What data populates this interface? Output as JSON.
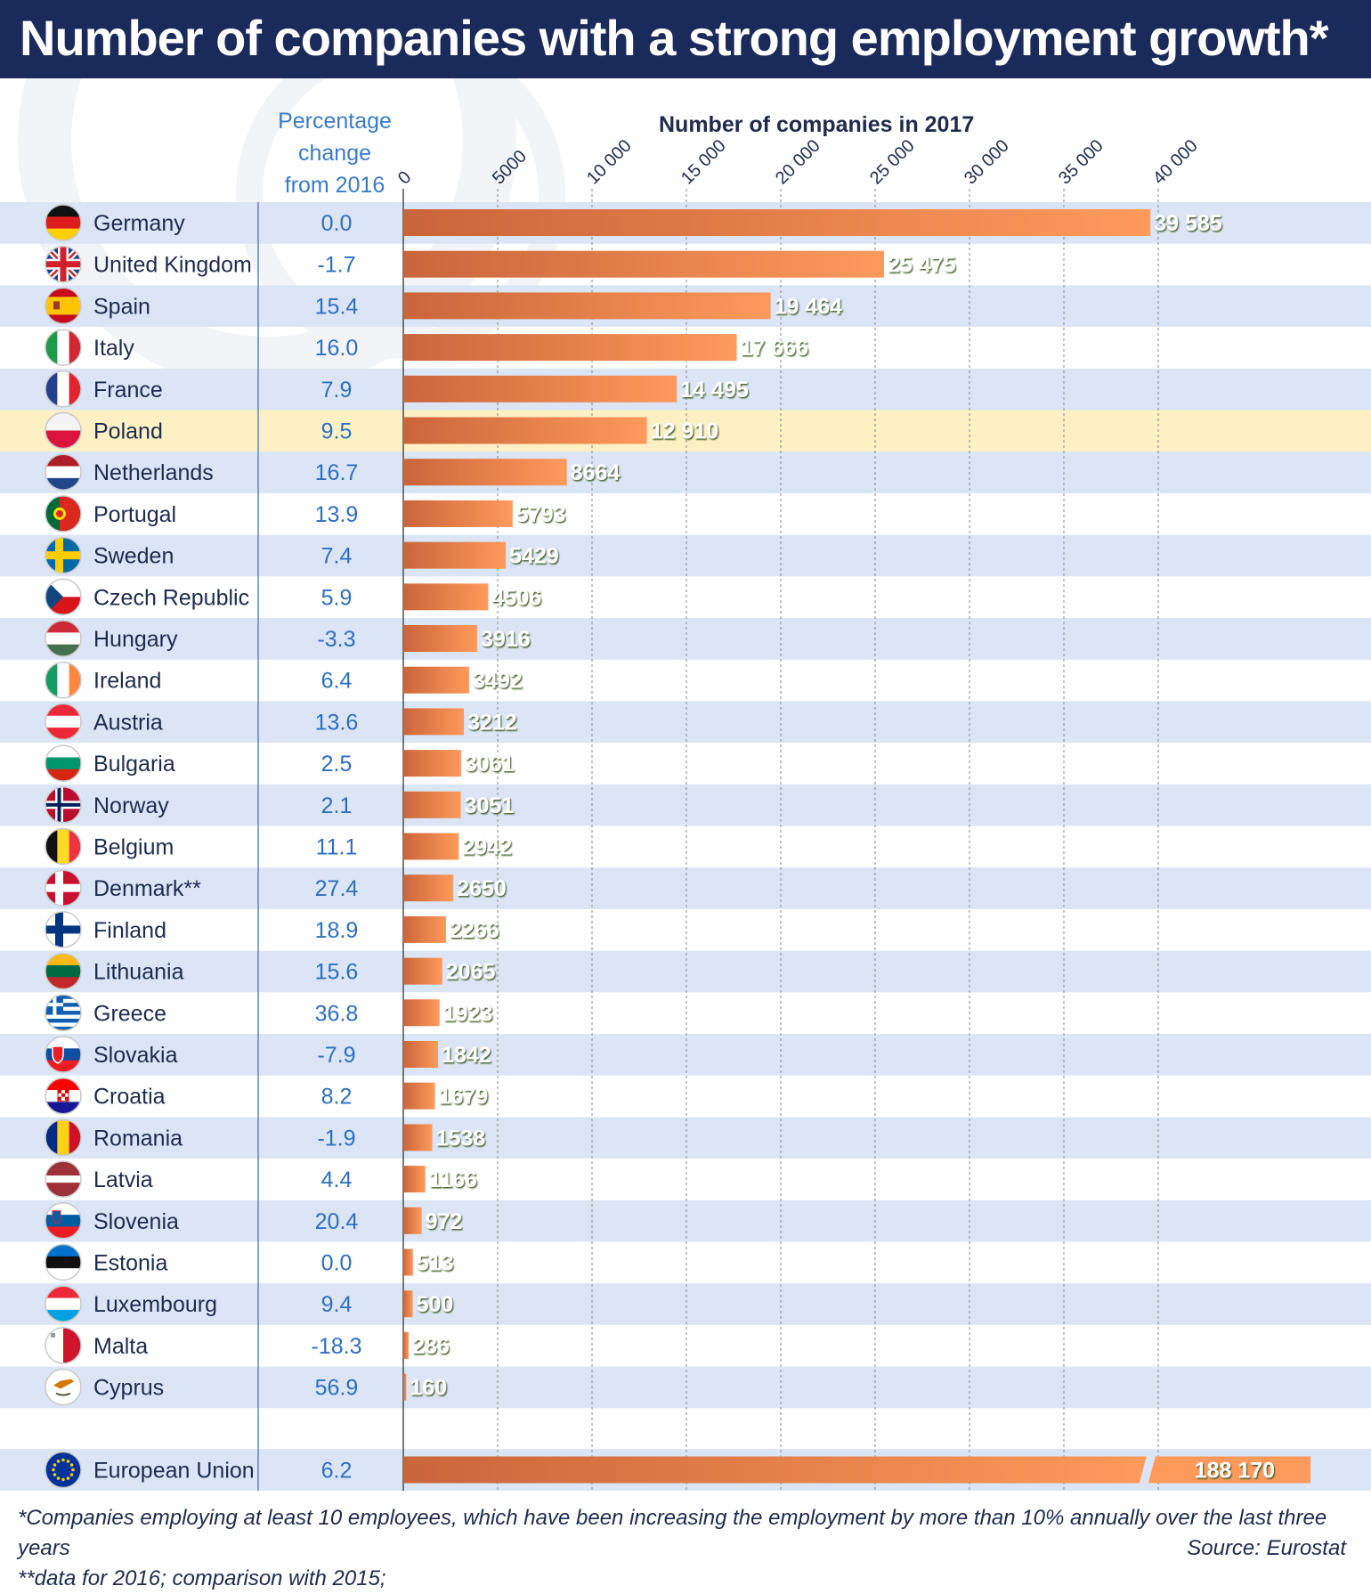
{
  "title": "Number of companies with a strong employment growth*",
  "pct_header": [
    "Percentage",
    "change",
    "from 2016"
  ],
  "footnotes": {
    "note1": "*Companies employing at least 10 employees, which have been increasing the employment by more than 10% annually over the last three years",
    "note2": "**data for 2016; comparison with 2015;",
    "source": "Source: Eurostat"
  },
  "colors": {
    "title_bg": "#1a2a5a",
    "stripe": "#dbe5f6",
    "highlight": "#fcf0c4",
    "bar_light": "#ff9a5c",
    "bar_dark": "#c9653a",
    "pct_text": "#2f6fc0",
    "value_text": "#ffffff",
    "value_shadow": "#3c5a1e"
  },
  "chart_data": {
    "type": "bar",
    "orientation": "horizontal",
    "xlabel": "Number of companies in 2017",
    "xticks": [
      "0",
      "5000",
      "10 000",
      "15 000",
      "20 000",
      "25 000",
      "30 000",
      "35 000",
      "40 000"
    ],
    "xlim": [
      0,
      45000
    ],
    "grid": true,
    "highlighted": "Poland",
    "rows": [
      {
        "country": "Germany",
        "flag": "germany-flag",
        "pct": "0.0",
        "value": 39585,
        "label": "39 585"
      },
      {
        "country": "United Kingdom",
        "flag": "uk-flag",
        "pct": "-1.7",
        "value": 25475,
        "label": "25 475"
      },
      {
        "country": "Spain",
        "flag": "spain-flag",
        "pct": "15.4",
        "value": 19464,
        "label": "19 464"
      },
      {
        "country": "Italy",
        "flag": "italy-flag",
        "pct": "16.0",
        "value": 17666,
        "label": "17 666"
      },
      {
        "country": "France",
        "flag": "france-flag",
        "pct": "7.9",
        "value": 14495,
        "label": "14 495"
      },
      {
        "country": "Poland",
        "flag": "poland-flag",
        "pct": "9.5",
        "value": 12910,
        "label": "12 910"
      },
      {
        "country": "Netherlands",
        "flag": "netherlands-flag",
        "pct": "16.7",
        "value": 8664,
        "label": "8664"
      },
      {
        "country": "Portugal",
        "flag": "portugal-flag",
        "pct": "13.9",
        "value": 5793,
        "label": "5793"
      },
      {
        "country": "Sweden",
        "flag": "sweden-flag",
        "pct": "7.4",
        "value": 5429,
        "label": "5429"
      },
      {
        "country": "Czech Republic",
        "flag": "czech-flag",
        "pct": "5.9",
        "value": 4506,
        "label": "4506"
      },
      {
        "country": "Hungary",
        "flag": "hungary-flag",
        "pct": "-3.3",
        "value": 3916,
        "label": "3916"
      },
      {
        "country": "Ireland",
        "flag": "ireland-flag",
        "pct": "6.4",
        "value": 3492,
        "label": "3492"
      },
      {
        "country": "Austria",
        "flag": "austria-flag",
        "pct": "13.6",
        "value": 3212,
        "label": "3212"
      },
      {
        "country": "Bulgaria",
        "flag": "bulgaria-flag",
        "pct": "2.5",
        "value": 3061,
        "label": "3061"
      },
      {
        "country": "Norway",
        "flag": "norway-flag",
        "pct": "2.1",
        "value": 3051,
        "label": "3051"
      },
      {
        "country": "Belgium",
        "flag": "belgium-flag",
        "pct": "11.1",
        "value": 2942,
        "label": "2942"
      },
      {
        "country": "Denmark**",
        "flag": "denmark-flag",
        "pct": "27.4",
        "value": 2650,
        "label": "2650"
      },
      {
        "country": "Finland",
        "flag": "finland-flag",
        "pct": "18.9",
        "value": 2266,
        "label": "2266"
      },
      {
        "country": "Lithuania",
        "flag": "lithuania-flag",
        "pct": "15.6",
        "value": 2065,
        "label": "2065"
      },
      {
        "country": "Greece",
        "flag": "greece-flag",
        "pct": "36.8",
        "value": 1923,
        "label": "1923"
      },
      {
        "country": "Slovakia",
        "flag": "slovakia-flag",
        "pct": "-7.9",
        "value": 1842,
        "label": "1842"
      },
      {
        "country": "Croatia",
        "flag": "croatia-flag",
        "pct": "8.2",
        "value": 1679,
        "label": "1679"
      },
      {
        "country": "Romania",
        "flag": "romania-flag",
        "pct": "-1.9",
        "value": 1538,
        "label": "1538"
      },
      {
        "country": "Latvia",
        "flag": "latvia-flag",
        "pct": "4.4",
        "value": 1166,
        "label": "1166"
      },
      {
        "country": "Slovenia",
        "flag": "slovenia-flag",
        "pct": "20.4",
        "value": 972,
        "label": "972"
      },
      {
        "country": "Estonia",
        "flag": "estonia-flag",
        "pct": "0.0",
        "value": 513,
        "label": "513"
      },
      {
        "country": "Luxembourg",
        "flag": "luxembourg-flag",
        "pct": "9.4",
        "value": 500,
        "label": "500"
      },
      {
        "country": "Malta",
        "flag": "malta-flag",
        "pct": "-18.3",
        "value": 286,
        "label": "286"
      },
      {
        "country": "Cyprus",
        "flag": "cyprus-flag",
        "pct": "56.9",
        "value": 160,
        "label": "160"
      }
    ],
    "eu": {
      "country": "European Union",
      "flag": "eu-flag",
      "pct": "6.2",
      "value": 188170,
      "label": "188 170",
      "axis_break": true
    }
  }
}
